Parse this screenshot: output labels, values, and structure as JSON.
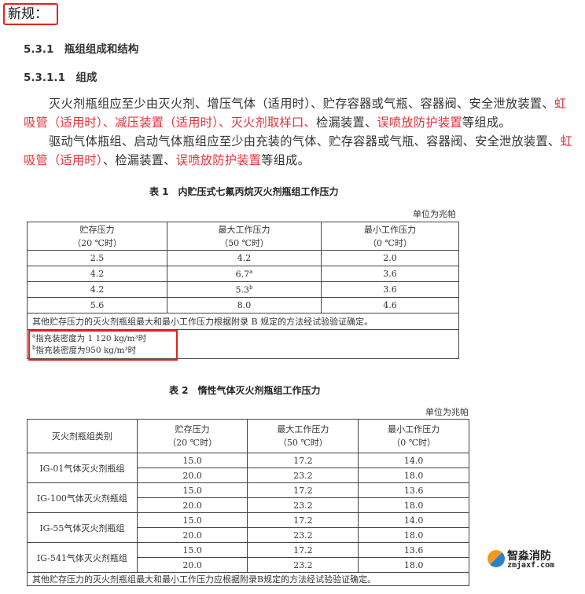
{
  "label": "新规：",
  "section_531": "5.3.1　瓶组组成和结构",
  "section_5311": "5.3.1.1　组成",
  "paragraphs": [
    [
      [
        {
          "t": "灭火剂瓶组应至少由灭火剂、增压气体（适用时）、贮存容器或气瓶、容器阀、安全泄放装置、",
          "red": false
        },
        {
          "t": "虹",
          "red": true
        }
      ],
      [
        {
          "t": "吸管（适用时）、减压装置（适用时）、灭火剂取样口、",
          "red": true
        },
        {
          "t": "检漏装置、",
          "red": false
        },
        {
          "t": "误喷放防护装置",
          "red": true
        },
        {
          "t": "等组成。",
          "red": false
        }
      ]
    ],
    [
      [
        {
          "t": "驱动气体瓶组、启动气体瓶组应至少由充装的气体、贮存容器或气瓶、容器阀、安全泄放装置、",
          "red": false
        },
        {
          "t": "虹",
          "red": true
        }
      ],
      [
        {
          "t": "吸管（适用时）",
          "red": true
        },
        {
          "t": "、检漏装置、",
          "red": false
        },
        {
          "t": "误喷放防护装置",
          "red": true
        },
        {
          "t": "等组成。",
          "red": false
        }
      ]
    ]
  ],
  "table1": {
    "caption": "表 1　内贮压式七氟丙烷灭火剂瓶组工作压力",
    "unit": "单位为兆帕",
    "headers": [
      [
        "贮存压力",
        "（20 ℃时）"
      ],
      [
        "最大工作压力",
        "（50 ℃时）"
      ],
      [
        "最小工作压力",
        "（0 ℃时）"
      ]
    ],
    "rows": [
      [
        "2.5",
        "4.2",
        "",
        "2.0"
      ],
      [
        "4.2",
        "6.7",
        "a",
        "3.6"
      ],
      [
        "4.2",
        "5.3",
        "b",
        "3.6"
      ],
      [
        "5.6",
        "8.0",
        "",
        "4.6"
      ]
    ],
    "note": "其他贮存压力的灭火剂瓶组最大和最小工作压力根据附录 B 规定的方法经试验验证确定。",
    "footnotes": [
      {
        "mark": "a",
        "text": "指充装密度为 1 120 kg/m³时"
      },
      {
        "mark": "b",
        "text": "指充装密度为950 kg/m³时"
      }
    ]
  },
  "table2": {
    "caption": "表 2　惰性气体灭火剂瓶组工作压力",
    "unit": "单位为兆帕",
    "headers": [
      [
        "灭火剂瓶组类别",
        ""
      ],
      [
        "贮存压力",
        "（20 ℃时）"
      ],
      [
        "最大工作压力",
        "（50 ℃时）"
      ],
      [
        "最小工作压力",
        "（0 ℃时）"
      ]
    ],
    "groups": [
      {
        "name": "IG-01气体灭火剂瓶组",
        "rows": [
          [
            "15.0",
            "17.2",
            "14.0"
          ],
          [
            "20.0",
            "23.2",
            "18.0"
          ]
        ]
      },
      {
        "name": "IG-100气体灭火剂瓶组",
        "rows": [
          [
            "15.0",
            "17.2",
            "13.6"
          ],
          [
            "20.0",
            "23.2",
            "18.0"
          ]
        ]
      },
      {
        "name": "IG-55气体灭火剂瓶组",
        "rows": [
          [
            "15.0",
            "17.2",
            "14.0"
          ],
          [
            "20.0",
            "23.2",
            "18.0"
          ]
        ]
      },
      {
        "name": "IG-541气体灭火剂瓶组",
        "rows": [
          [
            "15.0",
            "17.2",
            "13.6"
          ],
          [
            "20.0",
            "23.2",
            "18.0"
          ]
        ]
      }
    ],
    "note": "其他贮存压力的灭火剂瓶组最大和最小工作压力应根据附录B规定的方法经试验验证确定。"
  },
  "watermark": {
    "name": "智淼消防",
    "url": "zmjaxf.com"
  },
  "colors": {
    "highlight_red": "#e2323c",
    "box_red": "#e8201c"
  }
}
